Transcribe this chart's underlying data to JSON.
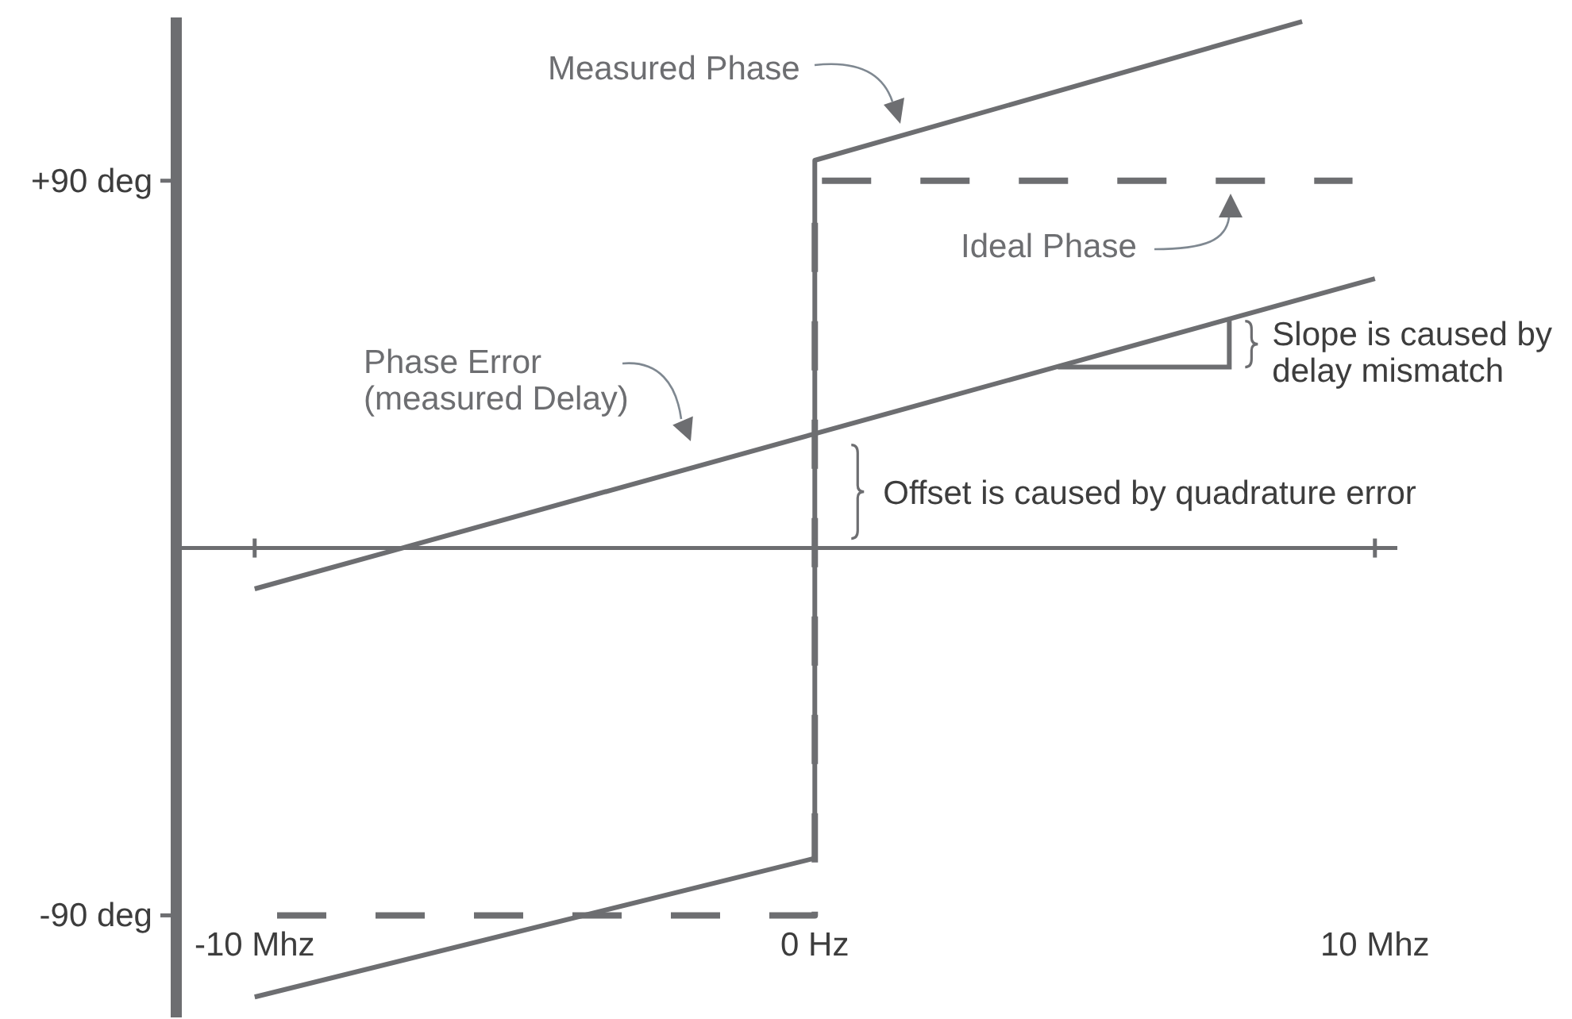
{
  "chart_data": {
    "type": "line",
    "marker": "none",
    "xlim": [
      -11.4,
      10.4
    ],
    "xticks": [
      {
        "value": -10,
        "label": "-10 Mhz"
      },
      {
        "value": 0,
        "label": "0 Hz"
      },
      {
        "value": 10,
        "label": "10 Mhz"
      }
    ],
    "ylim": [
      -115,
      130
    ],
    "yticks": [
      {
        "value": 90,
        "label": "+90 deg"
      },
      {
        "value": -90,
        "label": "-90 deg"
      }
    ],
    "series": [
      {
        "name": "Measured Phase",
        "color": "#6d6e71",
        "line_style": "solid",
        "x": [
          -10,
          0,
          0,
          8.7
        ],
        "values": [
          -110,
          -76,
          95,
          129
        ]
      },
      {
        "name": "Ideal Phase",
        "color": "#6d6e71",
        "line_style": "dashed",
        "x": [
          -9.6,
          0,
          0,
          9.6
        ],
        "values": [
          -90,
          -90,
          90,
          90
        ]
      },
      {
        "name": "Phase Error (measured Delay)",
        "color": "#6d6e71",
        "line_style": "solid",
        "x": [
          -10,
          10
        ],
        "values": [
          -10,
          66
        ]
      }
    ],
    "annotations": [
      {
        "text": "Slope is caused by delay mismatch",
        "x": 7.4,
        "y": 56
      },
      "Offset is caused by quadrature error"
    ]
  }
}
